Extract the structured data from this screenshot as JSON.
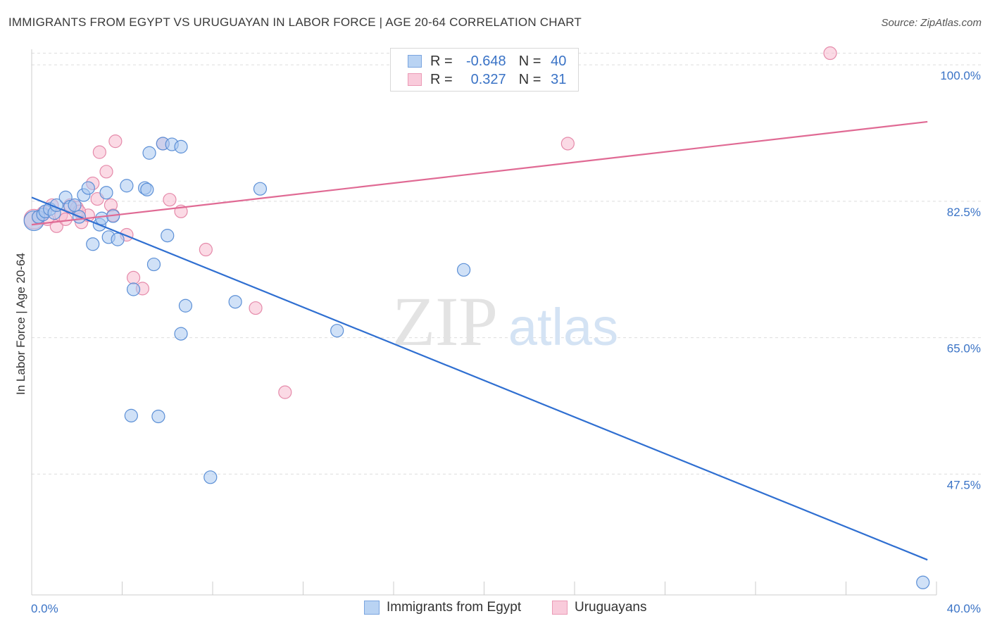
{
  "title": "IMMIGRANTS FROM EGYPT VS URUGUAYAN IN LABOR FORCE | AGE 20-64 CORRELATION CHART",
  "source": "Source: ZipAtlas.com",
  "watermark": {
    "zip": "ZIP",
    "atlas": "atlas"
  },
  "legend": {
    "rows": [
      {
        "r_label": "R =",
        "r_value": "-0.648",
        "n_label": "N =",
        "n_value": "40"
      },
      {
        "r_label": "R =",
        "r_value": "0.327",
        "n_label": "N =",
        "n_value": "31"
      }
    ]
  },
  "colors": {
    "egypt_fill": "#a9c8f0",
    "egypt_stroke": "#5b8fd6",
    "egypt_line": "#2f6fd1",
    "uru_fill": "#f7bcd0",
    "uru_stroke": "#e58aaa",
    "uru_line": "#e06a94",
    "tick_label": "#3a73c6",
    "grid": "#dddddd"
  },
  "chart_data": {
    "type": "scatter",
    "title": "IMMIGRANTS FROM EGYPT VS URUGUAYAN IN LABOR FORCE | AGE 20-64 CORRELATION CHART",
    "xlabel": "",
    "ylabel": "In Labor Force | Age 20-64",
    "xlim": [
      0,
      40
    ],
    "ylim": [
      32,
      102
    ],
    "x_tick_labels": [
      "0.0%",
      "40.0%"
    ],
    "y_ticks": [
      100.0,
      82.5,
      65.0,
      47.5
    ],
    "y_tick_labels": [
      "100.0%",
      "82.5%",
      "65.0%",
      "47.5%"
    ],
    "series": [
      {
        "name": "Immigrants from Egypt",
        "r": -0.648,
        "n": 40,
        "trend": {
          "x": [
            0,
            39.6
          ],
          "y": [
            83.0,
            36.5
          ]
        },
        "points": [
          {
            "x": 0.1,
            "y": 80.0
          },
          {
            "x": 0.3,
            "y": 80.5
          },
          {
            "x": 0.5,
            "y": 80.8
          },
          {
            "x": 0.6,
            "y": 81.2
          },
          {
            "x": 0.8,
            "y": 81.5
          },
          {
            "x": 1.0,
            "y": 81.0
          },
          {
            "x": 1.1,
            "y": 82.0
          },
          {
            "x": 1.5,
            "y": 83.0
          },
          {
            "x": 1.7,
            "y": 81.8
          },
          {
            "x": 1.9,
            "y": 82.0
          },
          {
            "x": 2.1,
            "y": 80.5
          },
          {
            "x": 2.3,
            "y": 83.3
          },
          {
            "x": 2.5,
            "y": 84.2
          },
          {
            "x": 2.7,
            "y": 77.0
          },
          {
            "x": 3.0,
            "y": 79.5
          },
          {
            "x": 3.1,
            "y": 80.3
          },
          {
            "x": 3.3,
            "y": 83.6
          },
          {
            "x": 3.4,
            "y": 77.9
          },
          {
            "x": 3.6,
            "y": 80.6
          },
          {
            "x": 3.8,
            "y": 77.6
          },
          {
            "x": 4.2,
            "y": 84.5
          },
          {
            "x": 4.5,
            "y": 71.2
          },
          {
            "x": 5.0,
            "y": 84.2
          },
          {
            "x": 5.1,
            "y": 84.0
          },
          {
            "x": 5.2,
            "y": 88.7
          },
          {
            "x": 5.4,
            "y": 74.4
          },
          {
            "x": 5.8,
            "y": 89.9
          },
          {
            "x": 6.0,
            "y": 78.1
          },
          {
            "x": 6.2,
            "y": 89.8
          },
          {
            "x": 6.6,
            "y": 89.5
          },
          {
            "x": 6.8,
            "y": 69.1
          },
          {
            "x": 9.0,
            "y": 69.6
          },
          {
            "x": 10.1,
            "y": 84.1
          },
          {
            "x": 13.5,
            "y": 65.9
          },
          {
            "x": 19.1,
            "y": 73.7
          },
          {
            "x": 4.4,
            "y": 55.0
          },
          {
            "x": 5.6,
            "y": 54.9
          },
          {
            "x": 7.9,
            "y": 47.1
          },
          {
            "x": 6.6,
            "y": 65.5
          },
          {
            "x": 39.4,
            "y": 33.6
          }
        ]
      },
      {
        "name": "Uruguayans",
        "r": 0.327,
        "n": 31,
        "trend": {
          "x": [
            0,
            39.6
          ],
          "y": [
            79.5,
            92.7
          ]
        },
        "points": [
          {
            "x": 0.1,
            "y": 80.2
          },
          {
            "x": 0.3,
            "y": 80.4
          },
          {
            "x": 0.5,
            "y": 81.0
          },
          {
            "x": 0.7,
            "y": 80.2
          },
          {
            "x": 0.9,
            "y": 82.0
          },
          {
            "x": 1.1,
            "y": 79.3
          },
          {
            "x": 1.3,
            "y": 80.7
          },
          {
            "x": 1.5,
            "y": 80.2
          },
          {
            "x": 1.7,
            "y": 82.0
          },
          {
            "x": 2.0,
            "y": 81.7
          },
          {
            "x": 2.2,
            "y": 79.8
          },
          {
            "x": 2.5,
            "y": 80.7
          },
          {
            "x": 2.7,
            "y": 84.8
          },
          {
            "x": 2.9,
            "y": 82.8
          },
          {
            "x": 3.0,
            "y": 88.8
          },
          {
            "x": 3.3,
            "y": 86.3
          },
          {
            "x": 3.5,
            "y": 82.0
          },
          {
            "x": 3.6,
            "y": 80.7
          },
          {
            "x": 3.7,
            "y": 90.2
          },
          {
            "x": 4.2,
            "y": 78.2
          },
          {
            "x": 4.5,
            "y": 72.7
          },
          {
            "x": 4.9,
            "y": 71.3
          },
          {
            "x": 5.8,
            "y": 89.9
          },
          {
            "x": 6.1,
            "y": 82.7
          },
          {
            "x": 6.6,
            "y": 81.2
          },
          {
            "x": 7.7,
            "y": 76.3
          },
          {
            "x": 9.9,
            "y": 68.8
          },
          {
            "x": 11.2,
            "y": 58.0
          },
          {
            "x": 23.7,
            "y": 89.9
          },
          {
            "x": 35.3,
            "y": 101.5
          },
          {
            "x": 2.1,
            "y": 81.2
          }
        ]
      }
    ]
  },
  "bottom_legend": {
    "egypt": "Immigrants from Egypt",
    "uru": "Uruguayans"
  }
}
